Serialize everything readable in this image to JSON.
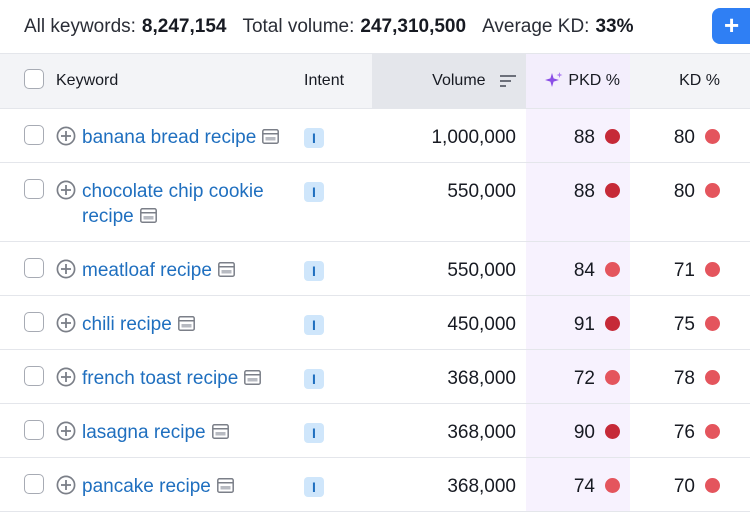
{
  "summary": {
    "all_keywords_label": "All keywords:",
    "all_keywords_value": "8,247,154",
    "total_volume_label": "Total volume:",
    "total_volume_value": "247,310,500",
    "avg_kd_label": "Average KD:",
    "avg_kd_value": "33%"
  },
  "add_button_label": "+",
  "table": {
    "headers": {
      "keyword": "Keyword",
      "intent": "Intent",
      "volume": "Volume",
      "pkd": "PKD %",
      "kd": "KD %"
    },
    "rows": [
      {
        "keyword": "banana bread recipe",
        "intent": "I",
        "volume": "1,000,000",
        "pkd": "88",
        "pkd_color": "#c62a38",
        "kd": "80",
        "kd_color": "#e4555d"
      },
      {
        "keyword": "chocolate chip cookie recipe",
        "intent": "I",
        "volume": "550,000",
        "pkd": "88",
        "pkd_color": "#c62a38",
        "kd": "80",
        "kd_color": "#e4555d"
      },
      {
        "keyword": "meatloaf recipe",
        "intent": "I",
        "volume": "550,000",
        "pkd": "84",
        "pkd_color": "#e4555d",
        "kd": "71",
        "kd_color": "#e4555d"
      },
      {
        "keyword": "chili recipe",
        "intent": "I",
        "volume": "450,000",
        "pkd": "91",
        "pkd_color": "#c62a38",
        "kd": "75",
        "kd_color": "#e4555d"
      },
      {
        "keyword": "french toast recipe",
        "intent": "I",
        "volume": "368,000",
        "pkd": "72",
        "pkd_color": "#e4555d",
        "kd": "78",
        "kd_color": "#e4555d"
      },
      {
        "keyword": "lasagna recipe",
        "intent": "I",
        "volume": "368,000",
        "pkd": "90",
        "pkd_color": "#c62a38",
        "kd": "76",
        "kd_color": "#e4555d"
      },
      {
        "keyword": "pancake recipe",
        "intent": "I",
        "volume": "368,000",
        "pkd": "74",
        "pkd_color": "#e4555d",
        "kd": "70",
        "kd_color": "#e4555d"
      }
    ]
  },
  "icons": {
    "sort": "sort-descending-icon",
    "sparkle": "sparkle-icon",
    "add_keyword": "plus-circle-icon",
    "serp": "serp-features-icon"
  }
}
